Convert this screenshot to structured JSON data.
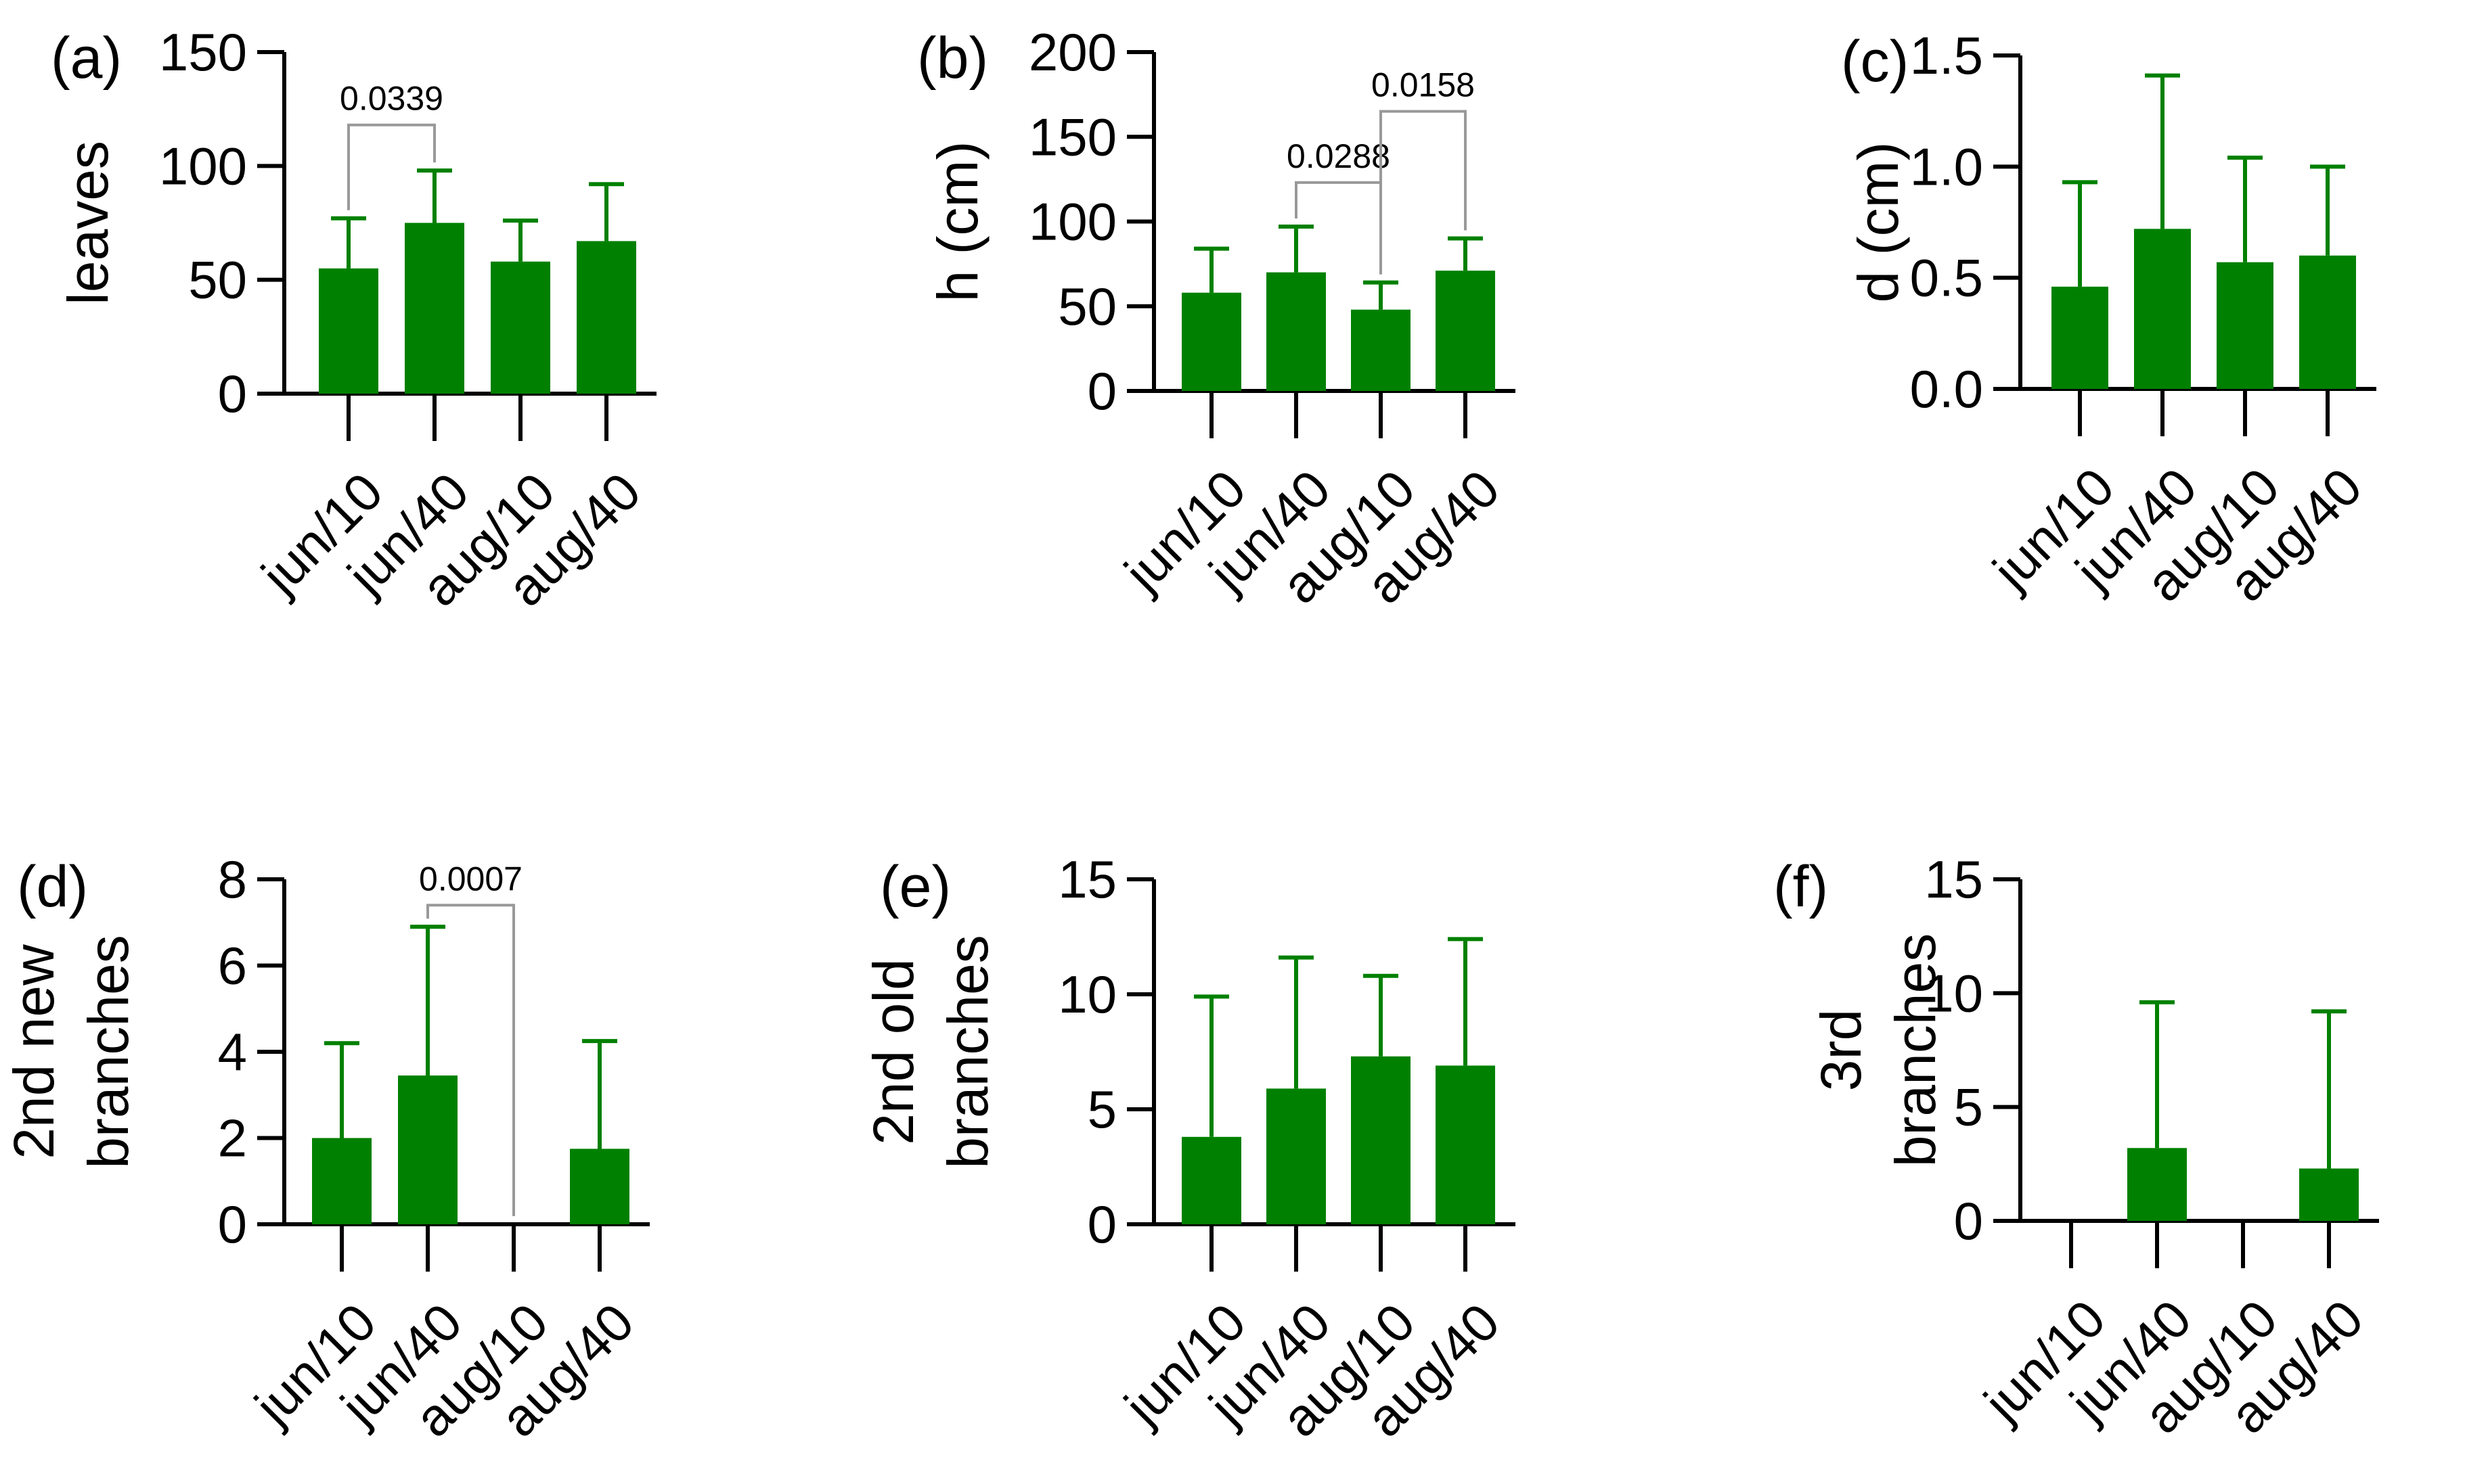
{
  "colors": {
    "bar": "#008000",
    "axis": "#000000",
    "bracket": "#999999"
  },
  "chart_data": [
    {
      "type": "bar",
      "panel_label": "(a)",
      "ylabel": [
        "leaves"
      ],
      "categories": [
        "jun/10",
        "jun/40",
        "aug/10",
        "aug/40"
      ],
      "values": [
        55,
        75,
        58,
        67
      ],
      "error_upper": [
        77,
        98,
        76,
        92
      ],
      "ylim": [
        0,
        150
      ],
      "yticks": [
        0,
        50,
        100,
        150
      ],
      "ytick_labels": [
        "0",
        "50",
        "100",
        "150"
      ],
      "annotations": [
        {
          "from": 0,
          "to": 1,
          "text": "0.0339",
          "level": 118
        }
      ]
    },
    {
      "type": "bar",
      "panel_label": "(b)",
      "ylabel": [
        "h (cm)"
      ],
      "categories": [
        "jun/10",
        "jun/40",
        "aug/10",
        "aug/40"
      ],
      "values": [
        58,
        70,
        48,
        71
      ],
      "error_upper": [
        84,
        97,
        64,
        90
      ],
      "ylim": [
        0,
        200
      ],
      "yticks": [
        0,
        50,
        100,
        150,
        200
      ],
      "ytick_labels": [
        "0",
        "50",
        "100",
        "150",
        "200"
      ],
      "annotations": [
        {
          "from": 1,
          "to": 2,
          "text": "0.0288",
          "level": 123
        },
        {
          "from": 2,
          "to": 3,
          "text": "0.0158",
          "level": 165
        }
      ]
    },
    {
      "type": "bar",
      "panel_label": "(c)",
      "ylabel": [
        "d (cm)"
      ],
      "categories": [
        "jun/10",
        "jun/40",
        "aug/10",
        "aug/40"
      ],
      "values": [
        0.46,
        0.72,
        0.57,
        0.6
      ],
      "error_upper": [
        0.93,
        1.41,
        1.04,
        1.0
      ],
      "ylim": [
        0,
        1.5
      ],
      "yticks": [
        0,
        0.5,
        1.0,
        1.5
      ],
      "ytick_labels": [
        "0.0",
        "0.5",
        "1.0",
        "1.5"
      ],
      "annotations": []
    },
    {
      "type": "bar",
      "panel_label": "(d)",
      "ylabel": [
        "2nd new",
        "branches"
      ],
      "categories": [
        "jun/10",
        "jun/40",
        "aug/10",
        "aug/40"
      ],
      "values": [
        2.0,
        3.45,
        0,
        1.75
      ],
      "error_upper": [
        4.2,
        6.9,
        0,
        4.25
      ],
      "ylim": [
        0,
        8
      ],
      "yticks": [
        0,
        2,
        4,
        6,
        8
      ],
      "ytick_labels": [
        "0",
        "2",
        "4",
        "6",
        "8"
      ],
      "annotations": [
        {
          "from": 1,
          "to": 2,
          "text": "0.0007",
          "level": 7.4
        }
      ]
    },
    {
      "type": "bar",
      "panel_label": "(e)",
      "ylabel": [
        "2nd old",
        "branches"
      ],
      "categories": [
        "jun/10",
        "jun/40",
        "aug/10",
        "aug/40"
      ],
      "values": [
        3.8,
        5.9,
        7.3,
        6.9
      ],
      "error_upper": [
        9.9,
        11.6,
        10.8,
        12.4
      ],
      "ylim": [
        0,
        15
      ],
      "yticks": [
        0,
        5,
        10,
        15
      ],
      "ytick_labels": [
        "0",
        "5",
        "10",
        "15"
      ],
      "annotations": []
    },
    {
      "type": "bar",
      "panel_label": "(f)",
      "ylabel": [
        "3rd",
        "branches"
      ],
      "categories": [
        "jun/10",
        "jun/40",
        "aug/10",
        "aug/40"
      ],
      "values": [
        0,
        3.2,
        0,
        2.3
      ],
      "error_upper": [
        0,
        9.6,
        0,
        9.2
      ],
      "ylim": [
        0,
        15
      ],
      "yticks": [
        0,
        5,
        10,
        15
      ],
      "ytick_labels": [
        "0",
        "5",
        "10",
        "15"
      ],
      "annotations": []
    }
  ]
}
